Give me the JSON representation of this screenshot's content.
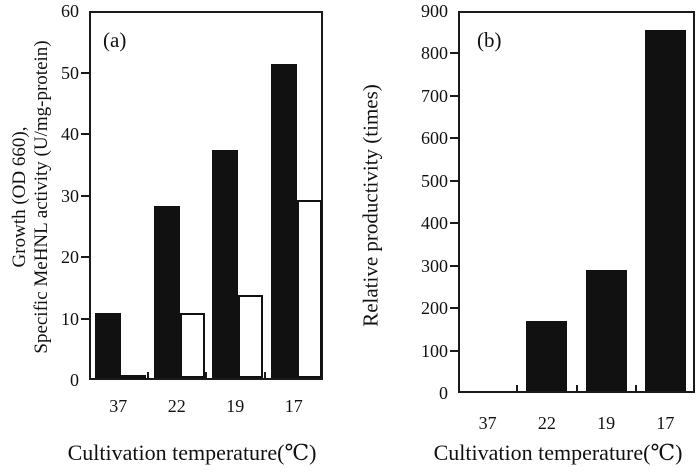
{
  "colors": {
    "background": "#ffffff",
    "bar_filled": "#111111",
    "bar_open_fill": "#ffffff",
    "bar_open_border": "#111111",
    "axis": "#1a1a1a",
    "text": "#111111"
  },
  "chart_data": [
    {
      "type": "bar",
      "panel_label": "(a)",
      "categories": [
        "37",
        "22",
        "19",
        "17"
      ],
      "series": [
        {
          "name": "black-filled-bars",
          "style": "filled",
          "values": [
            10.5,
            28,
            37,
            51
          ]
        },
        {
          "name": "white-open-bars",
          "style": "open",
          "values": [
            0.5,
            10.5,
            13.5,
            29
          ]
        }
      ],
      "xlabel": "Cultivation temperature(℃)",
      "ylabel_line1": "Growth (OD 660),",
      "ylabel_line2": "Specific MeHNL activity (U/mg-protein)",
      "ylim": [
        0,
        60
      ],
      "yticks": [
        0,
        10,
        20,
        30,
        40,
        50,
        60
      ],
      "legend": "none",
      "grid": false
    },
    {
      "type": "bar",
      "panel_label": "(b)",
      "categories": [
        "37",
        "22",
        "19",
        "17"
      ],
      "series": [
        {
          "name": "black-filled-bars",
          "style": "filled",
          "values": [
            0,
            165,
            285,
            850
          ]
        }
      ],
      "xlabel": "Cultivation temperature(℃)",
      "ylabel_line1": "Relative productivity (times)",
      "ylabel_line2": "",
      "ylim": [
        0,
        900
      ],
      "yticks": [
        0,
        100,
        200,
        300,
        400,
        500,
        600,
        700,
        800,
        900
      ],
      "legend": "none",
      "grid": false
    }
  ]
}
